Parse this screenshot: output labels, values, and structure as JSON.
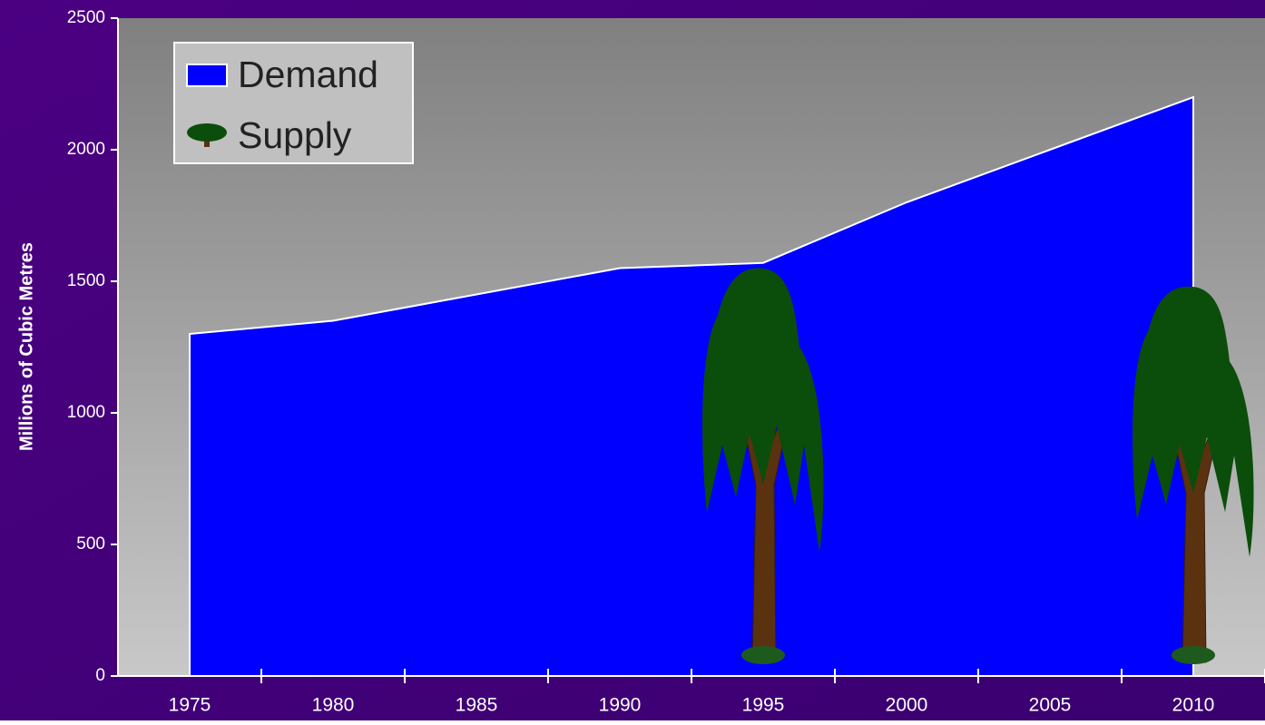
{
  "chart_data": {
    "type": "area",
    "y_label": "Millions of Cubic Metres",
    "x": [
      "1975",
      "1980",
      "1985",
      "1990",
      "1995",
      "2000",
      "2005",
      "2010"
    ],
    "series": [
      {
        "name": "Demand",
        "type": "area",
        "color": "#0000ff",
        "values": [
          1300,
          1350,
          1450,
          1550,
          1570,
          1800,
          2000,
          2200
        ]
      },
      {
        "name": "Supply",
        "type": "pictogram",
        "color": "#0b4d0b",
        "values": [
          null,
          null,
          null,
          null,
          1550,
          null,
          null,
          1480
        ]
      }
    ],
    "ylim": [
      0,
      2500
    ],
    "yticks": [
      0,
      500,
      1000,
      1500,
      2000,
      2500
    ],
    "legend": "top-left"
  }
}
